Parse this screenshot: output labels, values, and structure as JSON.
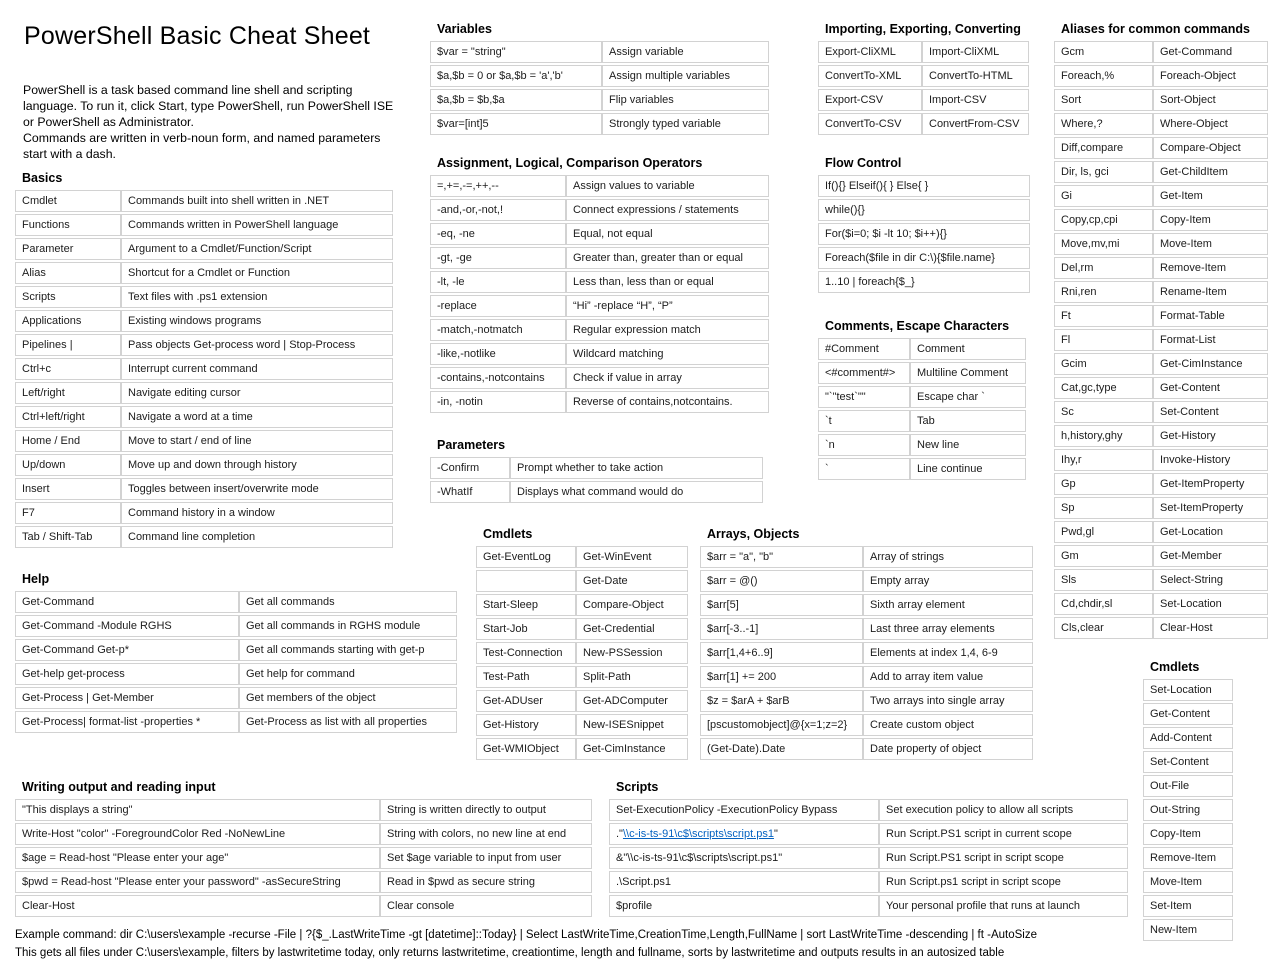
{
  "title": "PowerShell Basic Cheat Sheet",
  "intro": "PowerShell is a task based command line shell and scripting\nlanguage.  To run it, click Start, type PowerShell, run PowerShell ISE\nor PowerShell as Administrator.\nCommands are written in verb-noun form, and named parameters\nstart with a dash.",
  "colors": {
    "basics_key": "#dae3f3",
    "help_key": "#f8cbad",
    "variables_key": "#ededed",
    "operators_key": "#f2dbdb",
    "cmdlets_mid": "#dae3f3",
    "arrays_key": "#f2dbdb",
    "importing": "#fbe5d6",
    "flow": "#dae3f3",
    "comments_key": "#d8e4bc",
    "aliases_key": "#ededed",
    "cmdlets_right": "#fbe5d6",
    "writing_key": "#b4c6e7",
    "scripts_key": "#e2efd9",
    "link": "#0563c1"
  },
  "sections": {
    "basics": {
      "heading": "Basics",
      "rows": [
        [
          "Cmdlet",
          "Commands built into shell written in .NET"
        ],
        [
          "Functions",
          "Commands written in PowerShell language"
        ],
        [
          "Parameter",
          "Argument to a Cmdlet/Function/Script"
        ],
        [
          "Alias",
          "Shortcut for a Cmdlet or Function"
        ],
        [
          "Scripts",
          "Text files with .ps1 extension"
        ],
        [
          "Applications",
          "Existing windows programs"
        ],
        [
          "Pipelines |",
          "Pass objects Get-process word | Stop-Process"
        ],
        [
          "Ctrl+c",
          "Interrupt current command"
        ],
        [
          "Left/right",
          "Navigate editing cursor"
        ],
        [
          "Ctrl+left/right",
          "Navigate a word at a time"
        ],
        [
          "Home / End",
          "Move to start / end of line"
        ],
        [
          "Up/down",
          "Move up and down through history"
        ],
        [
          "Insert",
          "Toggles between insert/overwrite mode"
        ],
        [
          "F7",
          "Command history in a window"
        ],
        [
          "Tab / Shift-Tab",
          "Command line completion"
        ]
      ]
    },
    "help": {
      "heading": "Help",
      "rows": [
        [
          "Get-Command",
          "Get all commands"
        ],
        [
          "Get-Command -Module RGHS",
          "Get all commands in RGHS module"
        ],
        [
          "Get-Command Get-p*",
          "Get all commands starting with get-p"
        ],
        [
          "Get-help get-process",
          "Get help for command"
        ],
        [
          "Get-Process | Get-Member",
          "Get members of the object"
        ],
        [
          "Get-Process| format-list -properties *",
          "Get-Process  as list with all properties"
        ]
      ]
    },
    "variables": {
      "heading": "Variables",
      "rows": [
        [
          "$var = \"string\"",
          "Assign variable"
        ],
        [
          "$a,$b = 0 or $a,$b = 'a','b'",
          "Assign multiple variables"
        ],
        [
          "$a,$b = $b,$a",
          "Flip variables"
        ],
        [
          "$var=[int]5",
          "Strongly typed variable"
        ]
      ]
    },
    "operators": {
      "heading": "Assignment, Logical, Comparison Operators",
      "rows": [
        [
          "=,+=,-=,++,--",
          "Assign values to variable"
        ],
        [
          "-and,-or,-not,!",
          "Connect expressions / statements"
        ],
        [
          "-eq, -ne",
          "Equal, not equal"
        ],
        [
          "-gt, -ge",
          "Greater than, greater than or equal"
        ],
        [
          "-lt, -le",
          "Less than, less than or equal"
        ],
        [
          "-replace",
          "“Hi” -replace “H”, “P”"
        ],
        [
          "-match,-notmatch",
          "Regular expression match"
        ],
        [
          "-like,-notlike",
          "Wildcard matching"
        ],
        [
          "-contains,-notcontains",
          "Check if value in array"
        ],
        [
          "-in, -notin",
          "Reverse of contains,notcontains."
        ]
      ]
    },
    "parameters": {
      "heading": "Parameters",
      "rows": [
        [
          "-Confirm",
          "Prompt whether to take action"
        ],
        [
          "-WhatIf",
          "Displays what command would do"
        ]
      ]
    },
    "cmdlets_mid": {
      "heading": "Cmdlets",
      "rows": [
        [
          "Get-EventLog",
          "Get-WinEvent"
        ],
        [
          "",
          "Get-Date"
        ],
        [
          "Start-Sleep",
          "Compare-Object"
        ],
        [
          "Start-Job",
          "Get-Credential"
        ],
        [
          "Test-Connection",
          "New-PSSession"
        ],
        [
          "Test-Path",
          "Split-Path"
        ],
        [
          "Get-ADUser",
          "Get-ADComputer"
        ],
        [
          "Get-History",
          "New-ISESnippet"
        ],
        [
          "Get-WMIObject",
          "Get-CimInstance"
        ]
      ]
    },
    "arrays": {
      "heading": "Arrays, Objects",
      "rows": [
        [
          "$arr = \"a\", \"b\"",
          "Array of strings"
        ],
        [
          "$arr = @()",
          "Empty array"
        ],
        [
          "$arr[5]",
          "Sixth array element"
        ],
        [
          "$arr[-3..-1]",
          "Last three array elements"
        ],
        [
          "$arr[1,4+6..9]",
          "Elements at index 1,4, 6-9"
        ],
        [
          "$arr[1] += 200",
          "Add to array item value"
        ],
        [
          "$z = $arA + $arB",
          "Two arrays into single array"
        ],
        [
          "[pscustomobject]@{x=1;z=2}",
          "Create custom object"
        ],
        [
          "(Get-Date).Date",
          "Date property of object"
        ]
      ]
    },
    "importing": {
      "heading": "Importing, Exporting, Converting",
      "rows": [
        [
          "Export-CliXML",
          "Import-CliXML"
        ],
        [
          "ConvertTo-XML",
          "ConvertTo-HTML"
        ],
        [
          "Export-CSV",
          "Import-CSV"
        ],
        [
          "ConvertTo-CSV",
          "ConvertFrom-CSV"
        ]
      ]
    },
    "flow": {
      "heading": "Flow Control",
      "rows": [
        [
          "If(){} Elseif(){ } Else{ }"
        ],
        [
          "while(){}"
        ],
        [
          "For($i=0; $i -lt 10; $i++){}"
        ],
        [
          "Foreach($file in dir C:\\){$file.name}"
        ],
        [
          "1..10 | foreach{$_}"
        ]
      ]
    },
    "comments": {
      "heading": "Comments, Escape Characters",
      "rows": [
        [
          "#Comment",
          "Comment"
        ],
        [
          "<#comment#>",
          "Multiline Comment"
        ],
        [
          "\"`\"test`\"\"",
          "Escape char `"
        ],
        [
          "`t",
          "Tab"
        ],
        [
          "`n",
          "New line"
        ],
        [
          "`",
          "Line continue"
        ]
      ]
    },
    "aliases": {
      "heading": "Aliases for common commands",
      "rows": [
        [
          "Gcm",
          "Get-Command"
        ],
        [
          "Foreach,%",
          "Foreach-Object"
        ],
        [
          "Sort",
          "Sort-Object"
        ],
        [
          "Where,?",
          "Where-Object"
        ],
        [
          "Diff,compare",
          "Compare-Object"
        ],
        [
          "Dir, ls, gci",
          "Get-ChildItem"
        ],
        [
          "Gi",
          "Get-Item"
        ],
        [
          "Copy,cp,cpi",
          "Copy-Item"
        ],
        [
          "Move,mv,mi",
          "Move-Item"
        ],
        [
          "Del,rm",
          "Remove-Item"
        ],
        [
          "Rni,ren",
          "Rename-Item"
        ],
        [
          "Ft",
          "Format-Table"
        ],
        [
          "Fl",
          "Format-List"
        ],
        [
          "Gcim",
          "Get-CimInstance"
        ],
        [
          "Cat,gc,type",
          "Get-Content"
        ],
        [
          "Sc",
          "Set-Content"
        ],
        [
          "h,history,ghy",
          "Get-History"
        ],
        [
          "Ihy,r",
          "Invoke-History"
        ],
        [
          "Gp",
          "Get-ItemProperty"
        ],
        [
          "Sp",
          "Set-ItemProperty"
        ],
        [
          "Pwd,gl",
          "Get-Location"
        ],
        [
          "Gm",
          "Get-Member"
        ],
        [
          "Sls",
          "Select-String"
        ],
        [
          "Cd,chdir,sl",
          "Set-Location"
        ],
        [
          "Cls,clear",
          "Clear-Host"
        ]
      ]
    },
    "cmdlets_right": {
      "heading": "Cmdlets",
      "rows": [
        [
          "Set-Location"
        ],
        [
          "Get-Content"
        ],
        [
          "Add-Content"
        ],
        [
          "Set-Content"
        ],
        [
          "Out-File"
        ],
        [
          "Out-String"
        ],
        [
          "Copy-Item"
        ],
        [
          "Remove-Item"
        ],
        [
          "Move-Item"
        ],
        [
          "Set-Item"
        ],
        [
          "New-Item"
        ]
      ]
    },
    "writing": {
      "heading": "Writing output and reading input",
      "rows": [
        [
          "\"This displays a string\"",
          "String is written directly to output"
        ],
        [
          "Write-Host \"color\" -ForegroundColor Red -NoNewLine",
          "String with colors, no new line at end"
        ],
        [
          "$age = Read-host \"Please enter your age\"",
          "Set $age variable to input from user"
        ],
        [
          "$pwd = Read-host \"Please enter your password\" -asSecureString",
          "Read in $pwd as secure string"
        ],
        [
          "Clear-Host",
          "Clear console"
        ]
      ]
    },
    "scripts": {
      "heading": "Scripts",
      "rows": [
        [
          "Set-ExecutionPolicy -ExecutionPolicy Bypass",
          "Set execution policy to allow all scripts"
        ],
        [
          {
            "prefix": ".\"",
            "link": "\\\\c-is-ts-91\\c$\\scripts\\script.ps1",
            "suffix": "\""
          },
          "Run Script.PS1 script in current scope"
        ],
        [
          "&\"\\\\c-is-ts-91\\c$\\scripts\\script.ps1\"",
          "Run Script.PS1 script in script scope"
        ],
        [
          ".\\Script.ps1",
          "Run Script.ps1 script in script scope"
        ],
        [
          "$profile",
          "Your personal profile that runs at launch"
        ]
      ]
    }
  },
  "footer": {
    "line1": "Example command:  dir C:\\users\\example -recurse -File | ?{$_.LastWriteTime -gt [datetime]::Today} | Select LastWriteTime,CreationTime,Length,FullName | sort LastWriteTime -descending | ft -AutoSize",
    "line2": "This gets all files under C:\\users\\example, filters by lastwritetime today, only returns lastwritetime, creationtime, length and fullname, sorts by lastwritetime and outputs results in an autosized table"
  }
}
